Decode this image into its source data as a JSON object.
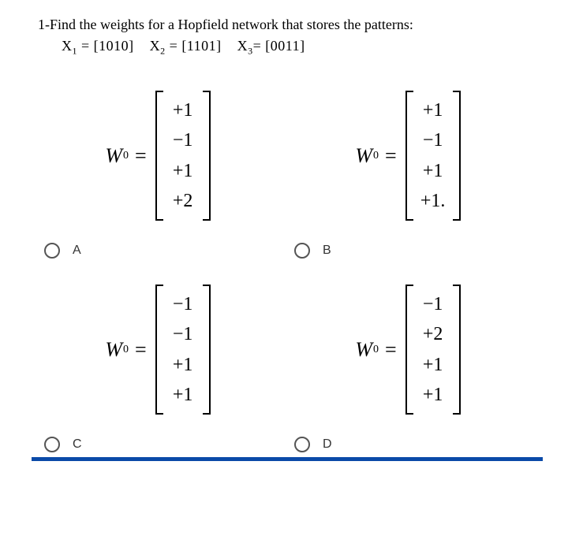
{
  "question": {
    "line1": "1-Find the weights for a Hopfield network that stores the patterns:",
    "line2_parts": {
      "x1_label": "X",
      "x1_sub": "1",
      "eq": " = ",
      "x1_val": "[1010]",
      "sep1": "   ",
      "x2_label": "X",
      "x2_sub": "2",
      "x2_val": "[1101]",
      "sep2": "   ",
      "x3_label": "X",
      "x3_sub": "3",
      "x3_val": "[0011]"
    }
  },
  "options": {
    "A": {
      "label": "A",
      "var": "W",
      "sub": "0",
      "values": [
        "+1",
        "−1",
        "+1",
        "+2"
      ]
    },
    "B": {
      "label": "B",
      "var": "W",
      "sub": "0",
      "values": [
        "+1",
        "−1",
        "+1",
        "+1."
      ]
    },
    "C": {
      "label": "C",
      "var": "W",
      "sub": "0",
      "values": [
        "−1",
        "−1",
        "+1",
        "+1"
      ]
    },
    "D": {
      "label": "D",
      "var": "W",
      "sub": "0",
      "values": [
        "−1",
        "+2",
        "+1",
        "+1"
      ]
    }
  },
  "style": {
    "text_color": "#000000",
    "radio_border": "#555555",
    "accent_line": "#0a4aa8",
    "question_fontsize": 18,
    "eqn_fontsize": 26,
    "cell_fontsize": 24
  }
}
